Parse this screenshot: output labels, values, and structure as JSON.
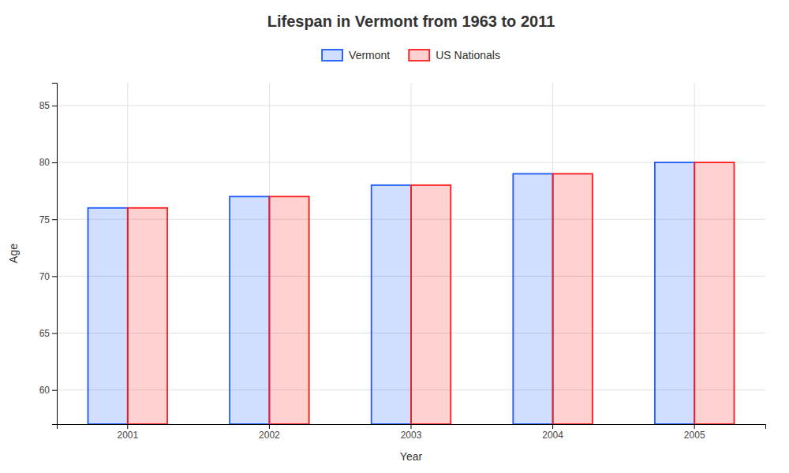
{
  "chart_data": {
    "type": "bar",
    "title": "Lifespan in Vermont from 1963 to 2011",
    "x_label": "Year",
    "y_label": "Age",
    "categories": [
      "2001",
      "2002",
      "2003",
      "2004",
      "2005"
    ],
    "series": [
      {
        "name": "Vermont",
        "color": "#1a5aff",
        "values": [
          76,
          77,
          78,
          79,
          80
        ]
      },
      {
        "name": "US Nationals",
        "color": "#ff1a1a",
        "values": [
          76,
          77,
          78,
          79,
          80
        ]
      }
    ],
    "ylim": [
      57,
      87
    ],
    "yticks": [
      60,
      65,
      70,
      75,
      80,
      85
    ],
    "grid": true,
    "legend": "top"
  }
}
